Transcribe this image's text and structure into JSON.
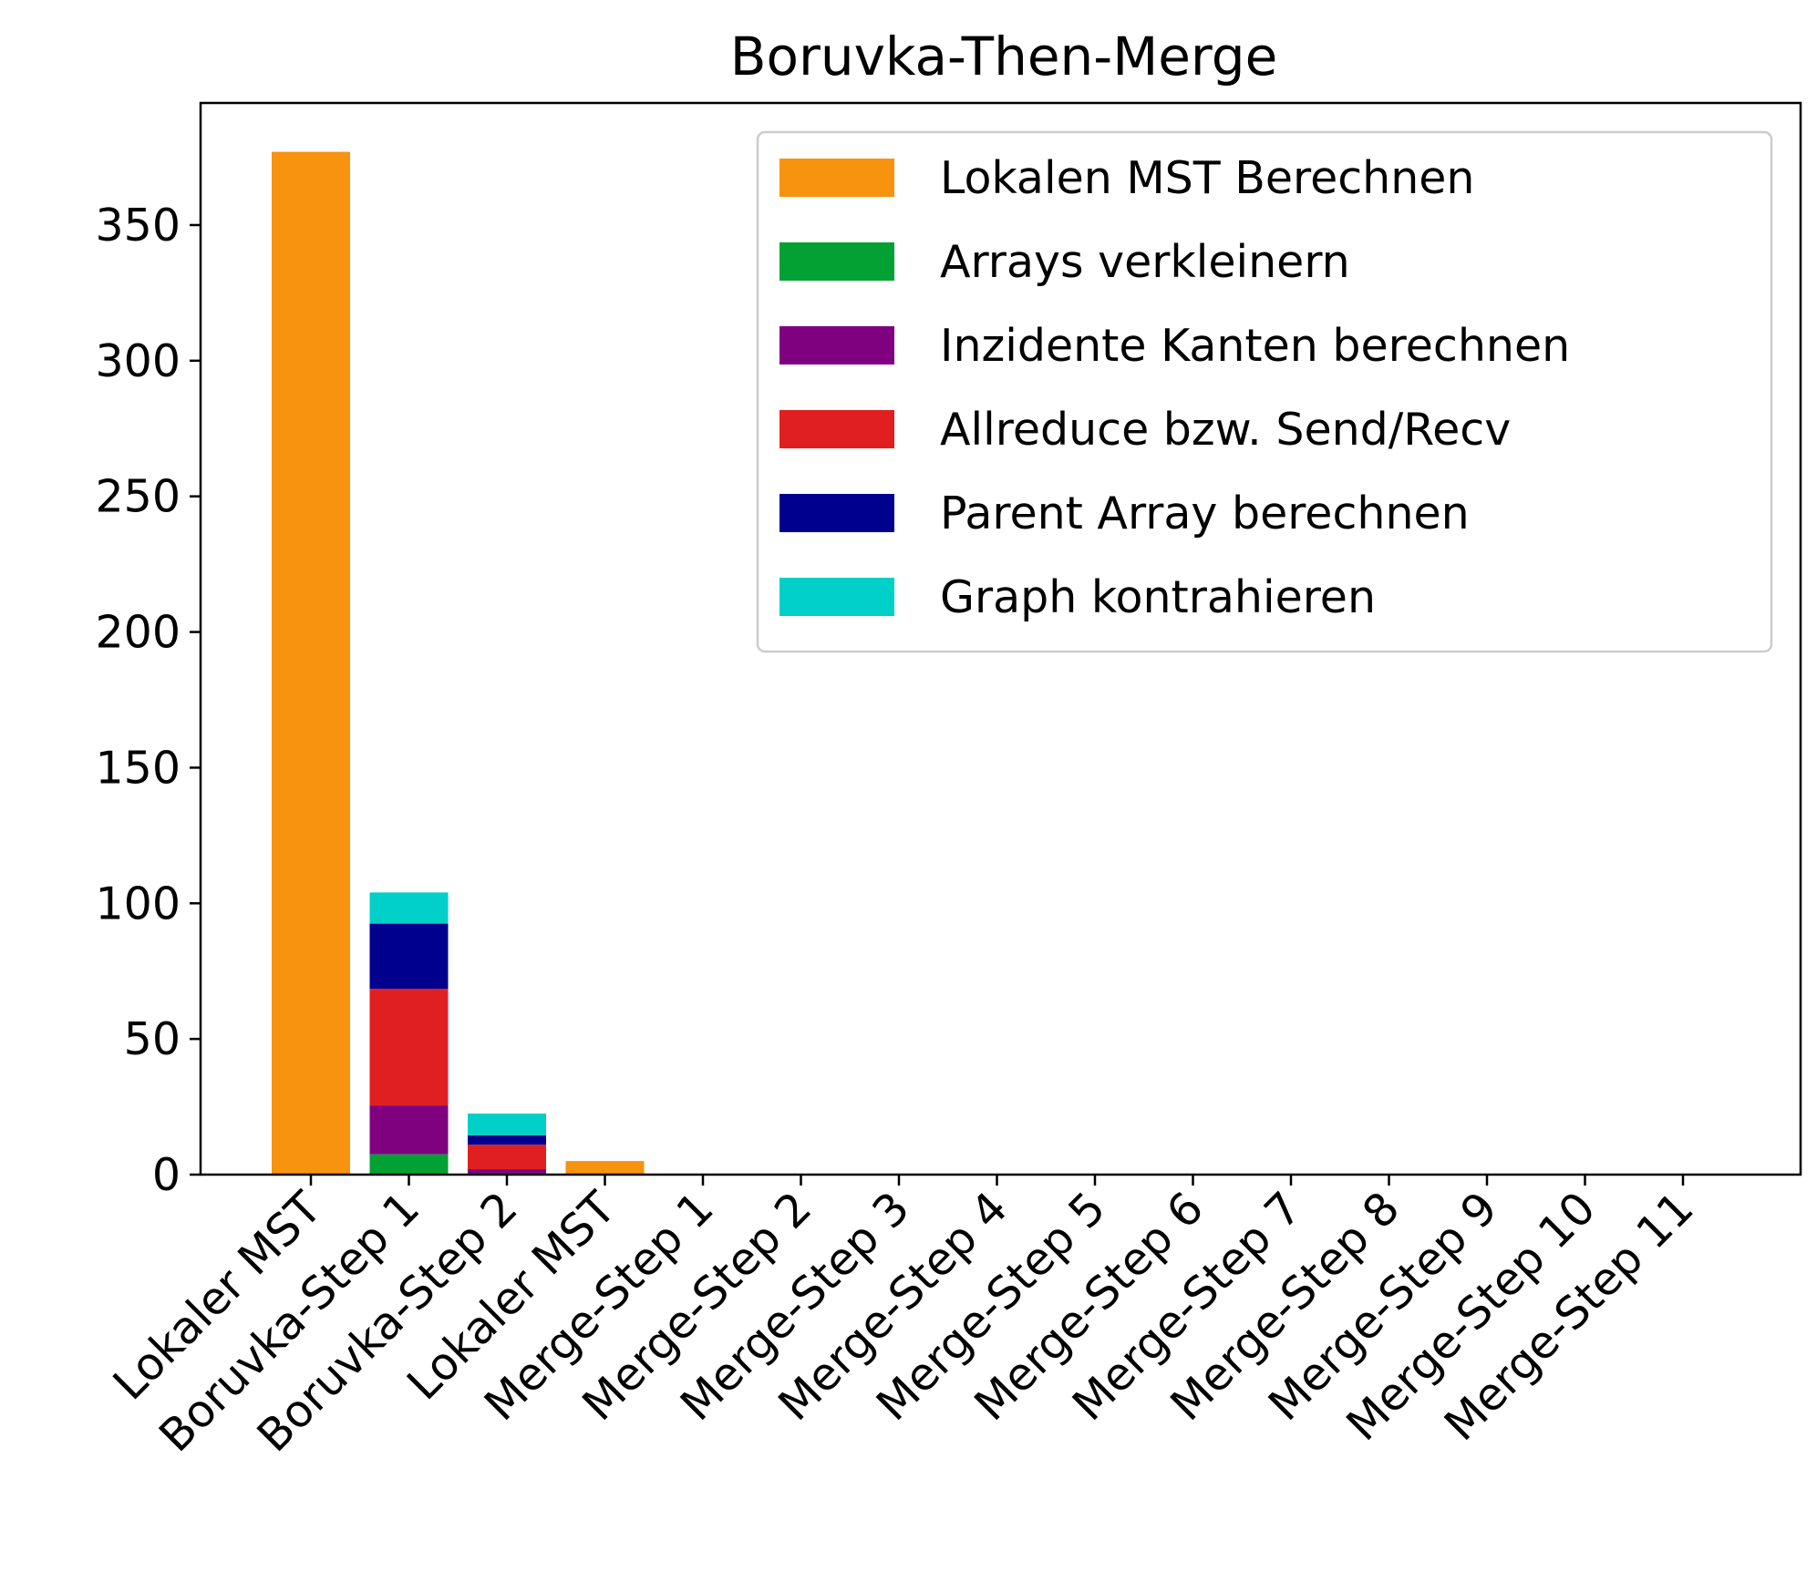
{
  "chart_data": {
    "type": "bar",
    "stacked": true,
    "title": "Boruvka-Then-Merge",
    "xlabel": "",
    "ylabel": "",
    "ylim": [
      0,
      395
    ],
    "yticks": [
      0,
      50,
      100,
      150,
      200,
      250,
      300,
      350
    ],
    "grid": false,
    "legend_position": "top-right",
    "categories": [
      "Lokaler MST",
      "Boruvka-Step 1",
      "Boruvka-Step 2",
      "Lokaler MST",
      "Merge-Step 1",
      "Merge-Step 2",
      "Merge-Step 3",
      "Merge-Step 4",
      "Merge-Step 5",
      "Merge-Step 6",
      "Merge-Step 7",
      "Merge-Step 8",
      "Merge-Step 9",
      "Merge-Step 10",
      "Merge-Step 11"
    ],
    "series": [
      {
        "name": "Lokalen MST Berechnen",
        "color": "#f7930f",
        "values": [
          377,
          0,
          0,
          5,
          0,
          0,
          0,
          0,
          0,
          0,
          0,
          0,
          0,
          0,
          0
        ]
      },
      {
        "name": "Arrays verkleinern",
        "color": "#03a033",
        "values": [
          0,
          7.5,
          0.5,
          0,
          0,
          0,
          0,
          0,
          0,
          0,
          0,
          0,
          0,
          0,
          0
        ]
      },
      {
        "name": "Inzidente Kanten berechnen",
        "color": "#800180",
        "values": [
          0,
          18,
          1.5,
          0,
          0,
          0,
          0,
          0,
          0,
          0,
          0,
          0,
          0,
          0,
          0
        ]
      },
      {
        "name": "Allreduce bzw. Send/Recv",
        "color": "#e02020",
        "values": [
          0,
          43,
          9,
          0,
          0,
          0,
          0,
          0,
          0,
          0,
          0,
          0,
          0,
          0,
          0
        ]
      },
      {
        "name": "Parent Array berechnen",
        "color": "#00008f",
        "values": [
          0,
          24,
          3.5,
          0,
          0,
          0,
          0,
          0,
          0,
          0,
          0,
          0,
          0,
          0,
          0
        ]
      },
      {
        "name": "Graph kontrahieren",
        "color": "#00d0c8",
        "values": [
          0,
          11.5,
          8,
          0,
          0,
          0,
          0,
          0,
          0,
          0,
          0,
          0,
          0,
          0,
          0
        ]
      }
    ]
  }
}
